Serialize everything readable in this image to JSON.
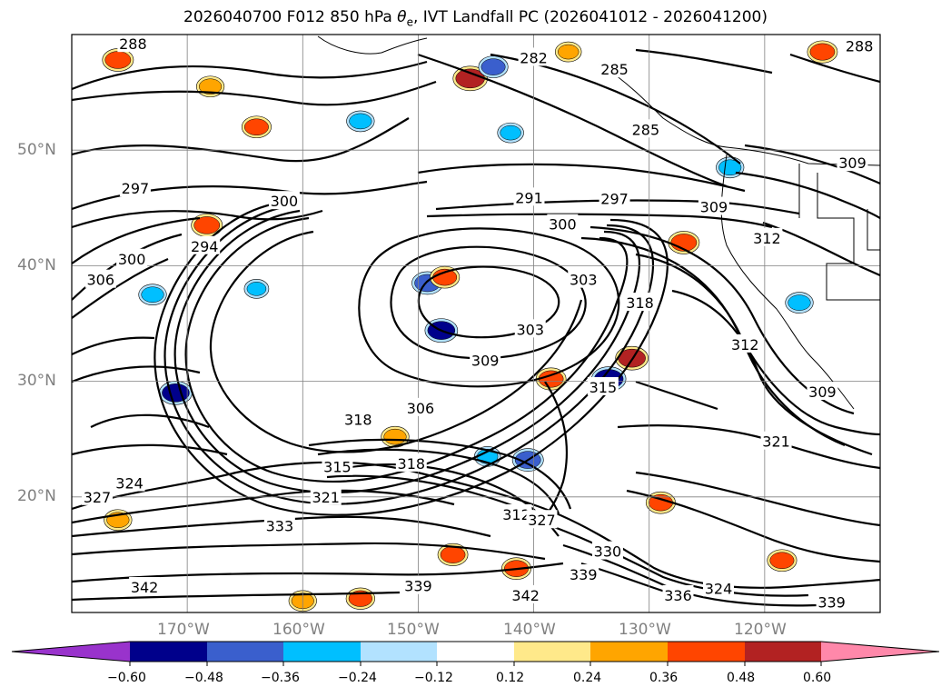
{
  "title_prefix": "2026040700 F012 850 hPa ",
  "title_symbol": "θ",
  "title_subscript": "e",
  "title_suffix": ", IVT Landfall PC (2026041012 - 2026041200)",
  "map": {
    "lon_range": [
      -180,
      -110
    ],
    "lat_range": [
      10,
      60
    ],
    "grid_lons": [
      -170,
      -160,
      -150,
      -140,
      -130,
      -120
    ],
    "grid_lats": [
      20,
      30,
      40,
      50
    ],
    "lat_labels": [
      "50°N",
      "40°N",
      "30°N",
      "20°N"
    ],
    "lon_labels": [
      "170°W",
      "160°W",
      "150°W",
      "140°W",
      "130°W",
      "120°W"
    ],
    "contour_labels": [
      {
        "text": "288",
        "lon": -174.7,
        "lat": 59.2
      },
      {
        "text": "297",
        "lon": -174.5,
        "lat": 46.7
      },
      {
        "text": "306",
        "lon": -177.5,
        "lat": 38.8
      },
      {
        "text": "300",
        "lon": -174.8,
        "lat": 40.6
      },
      {
        "text": "294",
        "lon": -168.5,
        "lat": 41.7
      },
      {
        "text": "300",
        "lon": -161.6,
        "lat": 45.6
      },
      {
        "text": "282",
        "lon": -140.0,
        "lat": 58.0
      },
      {
        "text": "285",
        "lon": -133.0,
        "lat": 57.0
      },
      {
        "text": "285",
        "lon": -130.3,
        "lat": 51.8
      },
      {
        "text": "288",
        "lon": -111.8,
        "lat": 59.0
      },
      {
        "text": "291",
        "lon": -140.4,
        "lat": 45.9
      },
      {
        "text": "297",
        "lon": -133.0,
        "lat": 45.8
      },
      {
        "text": "300",
        "lon": -137.5,
        "lat": 43.6
      },
      {
        "text": "303",
        "lon": -135.7,
        "lat": 38.8
      },
      {
        "text": "303",
        "lon": -140.3,
        "lat": 34.5
      },
      {
        "text": "309",
        "lon": -144.2,
        "lat": 31.8
      },
      {
        "text": "318",
        "lon": -130.8,
        "lat": 36.8
      },
      {
        "text": "315",
        "lon": -134.0,
        "lat": 29.5
      },
      {
        "text": "309",
        "lon": -124.4,
        "lat": 45.1
      },
      {
        "text": "312",
        "lon": -119.8,
        "lat": 42.4
      },
      {
        "text": "309",
        "lon": -112.4,
        "lat": 48.9
      },
      {
        "text": "312",
        "lon": -121.7,
        "lat": 33.2
      },
      {
        "text": "309",
        "lon": -115.0,
        "lat": 29.1
      },
      {
        "text": "306",
        "lon": -149.8,
        "lat": 27.7
      },
      {
        "text": "318",
        "lon": -155.2,
        "lat": 26.7
      },
      {
        "text": "321",
        "lon": -119.0,
        "lat": 24.8
      },
      {
        "text": "318",
        "lon": -150.6,
        "lat": 22.9
      },
      {
        "text": "315",
        "lon": -157.0,
        "lat": 22.6
      },
      {
        "text": "321",
        "lon": -158.0,
        "lat": 20.0
      },
      {
        "text": "324",
        "lon": -175.0,
        "lat": 21.2
      },
      {
        "text": "327",
        "lon": -177.8,
        "lat": 20.0
      },
      {
        "text": "333",
        "lon": -162.0,
        "lat": 17.5
      },
      {
        "text": "312",
        "lon": -141.5,
        "lat": 18.5
      },
      {
        "text": "327",
        "lon": -139.3,
        "lat": 18.0
      },
      {
        "text": "330",
        "lon": -133.6,
        "lat": 15.3
      },
      {
        "text": "339",
        "lon": -135.7,
        "lat": 13.3
      },
      {
        "text": "339",
        "lon": -150.0,
        "lat": 12.3
      },
      {
        "text": "342",
        "lon": -173.7,
        "lat": 12.2
      },
      {
        "text": "342",
        "lon": -140.7,
        "lat": 11.5
      },
      {
        "text": "336",
        "lon": -127.5,
        "lat": 11.5
      },
      {
        "text": "324",
        "lon": -124.0,
        "lat": 12.1
      },
      {
        "text": "339",
        "lon": -114.2,
        "lat": 10.9
      }
    ],
    "shaded_blobs": [
      {
        "lon": -145.5,
        "lat": 56.2,
        "value": 0.55
      },
      {
        "lon": -143.5,
        "lat": 57.2,
        "value": -0.4
      },
      {
        "lon": -168.3,
        "lat": 43.5,
        "value": 0.45
      },
      {
        "lon": -149.2,
        "lat": 38.5,
        "value": -0.45
      },
      {
        "lon": -147.7,
        "lat": 39.0,
        "value": 0.4
      },
      {
        "lon": -148.0,
        "lat": 34.4,
        "value": -0.5
      },
      {
        "lon": -138.5,
        "lat": 30.2,
        "value": 0.42
      },
      {
        "lon": -133.5,
        "lat": 30.2,
        "value": -0.55
      },
      {
        "lon": -131.5,
        "lat": 32.0,
        "value": 0.5
      },
      {
        "lon": -171.0,
        "lat": 29.0,
        "value": -0.5
      },
      {
        "lon": -173.0,
        "lat": 37.5,
        "value": -0.35
      },
      {
        "lon": -155.0,
        "lat": 52.5,
        "value": -0.35
      },
      {
        "lon": -164.0,
        "lat": 52.0,
        "value": 0.4
      },
      {
        "lon": -168.0,
        "lat": 55.5,
        "value": 0.35
      },
      {
        "lon": -176.0,
        "lat": 57.8,
        "value": 0.45
      },
      {
        "lon": -140.5,
        "lat": 23.2,
        "value": -0.45
      },
      {
        "lon": -144.0,
        "lat": 23.5,
        "value": -0.3
      },
      {
        "lon": -129.0,
        "lat": 19.5,
        "value": 0.4
      },
      {
        "lon": -115.0,
        "lat": 58.5,
        "value": 0.42
      },
      {
        "lon": -117.0,
        "lat": 36.8,
        "value": -0.35
      },
      {
        "lon": -147.0,
        "lat": 15.0,
        "value": 0.42
      },
      {
        "lon": -141.5,
        "lat": 13.8,
        "value": 0.4
      },
      {
        "lon": -176.0,
        "lat": 18.0,
        "value": 0.35
      },
      {
        "lon": -118.5,
        "lat": 14.5,
        "value": 0.4
      },
      {
        "lon": -123.0,
        "lat": 48.5,
        "value": -0.35
      },
      {
        "lon": -142.0,
        "lat": 51.5,
        "value": -0.3
      },
      {
        "lon": -155.0,
        "lat": 11.2,
        "value": 0.38
      },
      {
        "lon": -160.0,
        "lat": 11.0,
        "value": 0.35
      },
      {
        "lon": -127.0,
        "lat": 42.0,
        "value": 0.45
      },
      {
        "lon": -152.0,
        "lat": 25.2,
        "value": 0.35
      },
      {
        "lon": -164.0,
        "lat": 38.0,
        "value": -0.25
      },
      {
        "lon": -137.0,
        "lat": 58.5,
        "value": 0.3
      }
    ]
  },
  "colorbar": {
    "colors": [
      "#9933cc",
      "#00008b",
      "#3a5fcd",
      "#00bfff",
      "#b2e2ff",
      "#ffffff",
      "#ffe98a",
      "#ffa500",
      "#ff4500",
      "#b22222",
      "#ff88aa"
    ],
    "tick_labels": [
      "−0.60",
      "−0.48",
      "−0.36",
      "−0.24",
      "−0.12",
      "0.12",
      "0.24",
      "0.36",
      "0.48",
      "0.60"
    ]
  }
}
